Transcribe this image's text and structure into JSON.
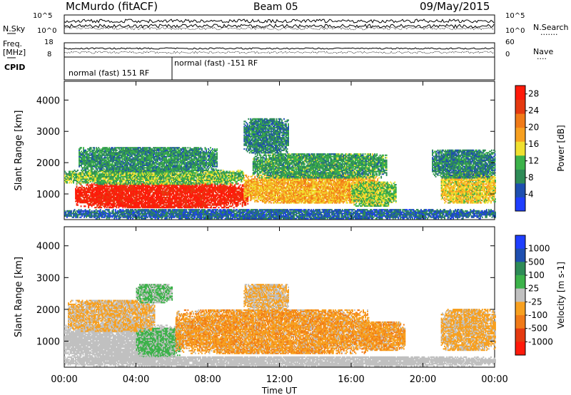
{
  "header": {
    "station": "McMurdo (fitACF)",
    "beam": "Beam 05",
    "date": "09/May/2015"
  },
  "top_panels": {
    "nsky_label": "N.Sky",
    "nsearch_label": "N.Search",
    "nsearch_dots": ".......",
    "freq_label": "Freq.",
    "freq_unit": "[MHz]",
    "nave_label": "Nave",
    "nave_dots": "....",
    "cpid_label": "CPID",
    "noise_ticks_left": [
      "10^5",
      "10^0"
    ],
    "noise_ticks_right": [
      "10^5",
      "10^0"
    ],
    "freq_ticks_left": [
      "18",
      "8"
    ],
    "nave_ticks_right": [
      "60",
      "0"
    ],
    "cpid_segments": [
      {
        "label": "normal (fast) 151 RF",
        "start_hour": 0,
        "end_hour": 6
      },
      {
        "label": "normal (fast) -151 RF",
        "start_hour": 6,
        "end_hour": 24
      }
    ]
  },
  "chart_data": [
    {
      "type": "heatmap",
      "title": "Power",
      "xlabel": "Time UT",
      "ylabel": "Slant Range [km]",
      "xlim": [
        0,
        24
      ],
      "ylim": [
        180,
        4600
      ],
      "x_ticks": [
        "00:00",
        "04:00",
        "08:00",
        "12:00",
        "16:00",
        "20:00",
        "00:00"
      ],
      "y_ticks": [
        1000,
        2000,
        3000,
        4000
      ],
      "colorbar": {
        "label": "Power [dB]",
        "ticks": [
          4,
          8,
          12,
          16,
          20,
          24,
          28
        ],
        "range": [
          0,
          30
        ],
        "colors": [
          "#1f3fff",
          "#1e4fb0",
          "#2e8b57",
          "#3cb24a",
          "#f0e030",
          "#f7a020",
          "#f07a18",
          "#e53a10",
          "#ff1a0a"
        ]
      },
      "regions": [
        {
          "t0": 0.6,
          "t1": 10.2,
          "r0": 550,
          "r1": 1350,
          "value": 28
        },
        {
          "t0": 0.0,
          "t1": 10.0,
          "r0": 1300,
          "r1": 1750,
          "value": 12
        },
        {
          "t0": 0.8,
          "t1": 8.5,
          "r0": 1700,
          "r1": 2500,
          "value": 9
        },
        {
          "t0": 10.0,
          "t1": 17.5,
          "r0": 700,
          "r1": 1600,
          "value": 18
        },
        {
          "t0": 10.5,
          "t1": 18.0,
          "r0": 1500,
          "r1": 2300,
          "value": 10
        },
        {
          "t0": 10.0,
          "t1": 12.5,
          "r0": 2300,
          "r1": 3400,
          "value": 8
        },
        {
          "t0": 16.0,
          "t1": 18.5,
          "r0": 600,
          "r1": 1400,
          "value": 13
        },
        {
          "t0": 21.0,
          "t1": 24.0,
          "r0": 700,
          "r1": 1700,
          "value": 16
        },
        {
          "t0": 20.5,
          "t1": 24.0,
          "r0": 1500,
          "r1": 2400,
          "value": 8
        },
        {
          "t0": 0.0,
          "t1": 24.0,
          "r0": 200,
          "r1": 500,
          "value": 6
        }
      ]
    },
    {
      "type": "heatmap",
      "title": "Velocity",
      "xlabel": "Time UT",
      "ylabel": "Slant Range [km]",
      "xlim": [
        0,
        24
      ],
      "ylim": [
        180,
        4600
      ],
      "x_ticks": [
        "00:00",
        "04:00",
        "08:00",
        "12:00",
        "16:00",
        "20:00",
        "00:00"
      ],
      "y_ticks": [
        1000,
        2000,
        3000,
        4000
      ],
      "colorbar": {
        "label": "Velocity [m s-1]",
        "ticks": [
          "1000",
          "500",
          "100",
          "25",
          "-25",
          "-100",
          "-500",
          "-1000"
        ],
        "range": [
          -1200,
          1200
        ],
        "colors": [
          "#1f3fff",
          "#1e4fb0",
          "#2e8b57",
          "#3cb24a",
          "#c0c0c0",
          "#f7a020",
          "#f07a18",
          "#e53a10",
          "#ff1a0a"
        ]
      },
      "regions": [
        {
          "t0": 0.0,
          "t1": 6.2,
          "r0": 400,
          "r1": 1500,
          "value": 10
        },
        {
          "t0": 4.0,
          "t1": 6.5,
          "r0": 500,
          "r1": 1400,
          "value": 200
        },
        {
          "t0": 0.2,
          "t1": 5.0,
          "r0": 1300,
          "r1": 2300,
          "value": -150
        },
        {
          "t0": 4.0,
          "t1": 6.0,
          "r0": 2200,
          "r1": 2800,
          "value": 150
        },
        {
          "t0": 6.2,
          "t1": 17.0,
          "r0": 600,
          "r1": 2000,
          "value": -300
        },
        {
          "t0": 10.0,
          "t1": 12.5,
          "r0": 2000,
          "r1": 2800,
          "value": -150
        },
        {
          "t0": 16.5,
          "t1": 19.0,
          "r0": 700,
          "r1": 1600,
          "value": -300
        },
        {
          "t0": 21.0,
          "t1": 24.0,
          "r0": 700,
          "r1": 2000,
          "value": -200
        },
        {
          "t0": 0.0,
          "t1": 24.0,
          "r0": 200,
          "r1": 500,
          "value": 20
        }
      ]
    }
  ],
  "cbar_label_power": "Power [dB]",
  "cbar_label_velocity": "Velocity [m s-1]"
}
